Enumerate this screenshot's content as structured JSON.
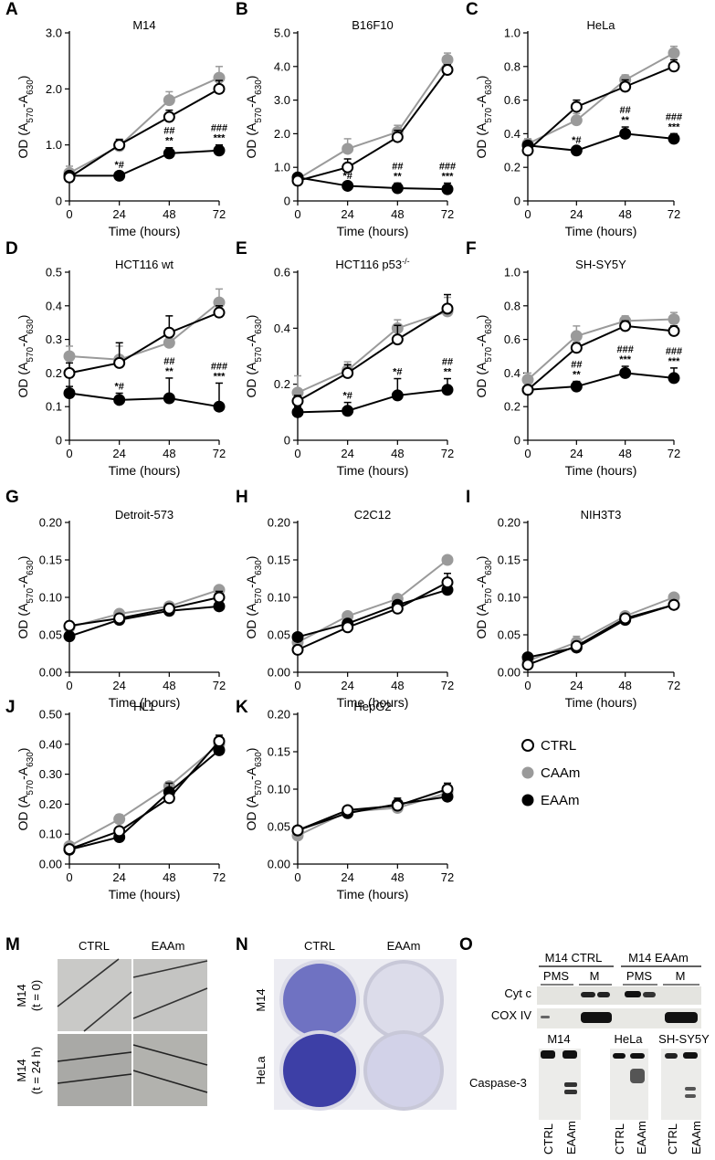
{
  "figure": {
    "legend": [
      {
        "label": "CTRL",
        "color": "#ffffff"
      },
      {
        "label": "CAAm",
        "color": "#9a9a9a"
      },
      {
        "label": "EAAm",
        "color": "#000000"
      }
    ],
    "colors": {
      "ctrl_fill": "#ffffff",
      "caam": "#9a9a9a",
      "eaam": "#000000"
    },
    "x_ticks": [
      0,
      24,
      48,
      72
    ],
    "xlabel": "Time (hours)",
    "ylabel_main": "OD (A",
    "ylabel_sub1": "570",
    "ylabel_mid": "-A",
    "ylabel_sub2": "630",
    "ylabel_end": ")",
    "panels": [
      {
        "letter": "A",
        "title": "M14",
        "ylim": [
          0,
          3.0
        ],
        "yticks": [
          "0",
          "1.0",
          "2.0",
          "3.0"
        ],
        "ctrl": [
          0.42,
          1.0,
          1.5,
          2.0
        ],
        "caam": [
          0.5,
          0.98,
          1.8,
          2.2
        ],
        "eaam": [
          0.45,
          0.45,
          0.85,
          0.9
        ],
        "ctrl_err": [
          0.06,
          0.1,
          0.12,
          0.15
        ],
        "caam_err": [
          0.12,
          0.1,
          0.15,
          0.2
        ],
        "eaam_err": [
          0.05,
          0.07,
          0.1,
          0.1
        ],
        "sig": [
          null,
          [
            "*#"
          ],
          [
            "##",
            "**"
          ],
          [
            "###",
            "***"
          ]
        ]
      },
      {
        "letter": "B",
        "title": "B16F10",
        "ylim": [
          0,
          5.0
        ],
        "yticks": [
          "0",
          "1.0",
          "2.0",
          "3.0",
          "4.0",
          "5.0"
        ],
        "ctrl": [
          0.6,
          1.0,
          1.9,
          3.9
        ],
        "caam": [
          0.65,
          1.55,
          2.05,
          4.2
        ],
        "eaam": [
          0.7,
          0.45,
          0.38,
          0.35
        ],
        "ctrl_err": [
          0.1,
          0.25,
          0.2,
          0.15
        ],
        "caam_err": [
          0.1,
          0.3,
          0.2,
          0.2
        ],
        "eaam_err": [
          0.08,
          0.1,
          0.15,
          0.18
        ],
        "sig": [
          null,
          [
            "*#"
          ],
          [
            "##",
            "**"
          ],
          [
            "###",
            "***"
          ]
        ]
      },
      {
        "letter": "C",
        "title": "HeLa",
        "ylim": [
          0,
          1.0
        ],
        "yticks": [
          "0",
          "0.2",
          "0.4",
          "0.6",
          "0.8",
          "1.0"
        ],
        "ctrl": [
          0.3,
          0.56,
          0.68,
          0.8
        ],
        "caam": [
          0.34,
          0.48,
          0.72,
          0.88
        ],
        "eaam": [
          0.33,
          0.3,
          0.4,
          0.37
        ],
        "ctrl_err": [
          0.02,
          0.04,
          0.04,
          0.04
        ],
        "caam_err": [
          0.03,
          0.04,
          0.03,
          0.04
        ],
        "eaam_err": [
          0.02,
          0.02,
          0.04,
          0.03
        ],
        "sig": [
          null,
          [
            "*#"
          ],
          [
            "##",
            "**"
          ],
          [
            "###",
            "***"
          ]
        ]
      },
      {
        "letter": "D",
        "title": "HCT116 wt",
        "ylim": [
          0,
          0.5
        ],
        "yticks": [
          "0",
          "0.1",
          "0.2",
          "0.3",
          "0.4",
          "0.5"
        ],
        "ctrl": [
          0.2,
          0.23,
          0.32,
          0.38
        ],
        "caam": [
          0.25,
          0.24,
          0.29,
          0.41
        ],
        "eaam": [
          0.14,
          0.12,
          0.125,
          0.1
        ],
        "ctrl_err": [
          0.03,
          0.06,
          0.05,
          0.02
        ],
        "caam_err": [
          0.03,
          0.04,
          0.04,
          0.04
        ],
        "eaam_err": [
          0.02,
          0.02,
          0.06,
          0.07
        ],
        "sig": [
          null,
          [
            "*#"
          ],
          [
            "##",
            "**"
          ],
          [
            "###",
            "***"
          ]
        ]
      },
      {
        "letter": "E",
        "title": "HCT116 p53",
        "title_sup": "-/-",
        "ylim": [
          0,
          0.6
        ],
        "yticks": [
          "0",
          "0.2",
          "0.4",
          "0.6"
        ],
        "ctrl": [
          0.14,
          0.24,
          0.36,
          0.47
        ],
        "caam": [
          0.17,
          0.25,
          0.4,
          0.46
        ],
        "eaam": [
          0.1,
          0.105,
          0.16,
          0.18
        ],
        "ctrl_err": [
          0.02,
          0.03,
          0.05,
          0.05
        ],
        "caam_err": [
          0.06,
          0.03,
          0.03,
          0.05
        ],
        "eaam_err": [
          0.02,
          0.03,
          0.06,
          0.04
        ],
        "sig": [
          null,
          [
            "*#"
          ],
          [
            "*#"
          ],
          [
            "##",
            "**"
          ]
        ]
      },
      {
        "letter": "F",
        "title": "SH-SY5Y",
        "ylim": [
          0,
          1.0
        ],
        "yticks": [
          "0",
          "0.2",
          "0.4",
          "0.6",
          "0.8",
          "1.0"
        ],
        "ctrl": [
          0.3,
          0.55,
          0.68,
          0.65
        ],
        "caam": [
          0.36,
          0.62,
          0.71,
          0.72
        ],
        "eaam": [
          0.3,
          0.32,
          0.4,
          0.37
        ],
        "ctrl_err": [
          0.02,
          0.03,
          0.03,
          0.03
        ],
        "caam_err": [
          0.04,
          0.06,
          0.03,
          0.04
        ],
        "eaam_err": [
          0.02,
          0.03,
          0.04,
          0.06
        ],
        "sig": [
          null,
          [
            "##",
            "**"
          ],
          [
            "###",
            "***"
          ],
          [
            "###",
            "***"
          ]
        ]
      },
      {
        "letter": "G",
        "title": "Detroit-573",
        "ylim": [
          0,
          0.2
        ],
        "yticks": [
          "0.00",
          "0.05",
          "0.10",
          "0.15",
          "0.20"
        ],
        "ctrl": [
          0.062,
          0.072,
          0.085,
          0.1
        ],
        "caam": [
          0.06,
          0.078,
          0.088,
          0.11
        ],
        "eaam": [
          0.048,
          0.07,
          0.082,
          0.088
        ],
        "ctrl_err": [
          0.003,
          0.004,
          0.006,
          0.008
        ],
        "caam_err": [
          0.003,
          0.003,
          0.005,
          0.005
        ],
        "eaam_err": [
          0.003,
          0.003,
          0.004,
          0.004
        ],
        "sig": [
          null,
          null,
          null,
          null
        ]
      },
      {
        "letter": "H",
        "title": "C2C12",
        "ylim": [
          0,
          0.2
        ],
        "yticks": [
          "0.00",
          "0.05",
          "0.10",
          "0.15",
          "0.20"
        ],
        "ctrl": [
          0.03,
          0.06,
          0.085,
          0.12
        ],
        "caam": [
          0.04,
          0.075,
          0.098,
          0.15
        ],
        "eaam": [
          0.047,
          0.065,
          0.09,
          0.11
        ],
        "ctrl_err": [
          0.004,
          0.004,
          0.005,
          0.012
        ],
        "caam_err": [
          0.003,
          0.003,
          0.004,
          0.004
        ],
        "eaam_err": [
          0.003,
          0.003,
          0.004,
          0.006
        ],
        "sig": [
          null,
          null,
          null,
          null
        ]
      },
      {
        "letter": "I",
        "title": "NIH3T3",
        "ylim": [
          0,
          0.2
        ],
        "yticks": [
          "0.00",
          "0.05",
          "0.10",
          "0.15",
          "0.20"
        ],
        "ctrl": [
          0.01,
          0.035,
          0.072,
          0.09
        ],
        "caam": [
          0.015,
          0.04,
          0.075,
          0.1
        ],
        "eaam": [
          0.02,
          0.033,
          0.07,
          0.09
        ],
        "ctrl_err": [
          0.004,
          0.005,
          0.004,
          0.004
        ],
        "caam_err": [
          0.003,
          0.008,
          0.005,
          0.005
        ],
        "eaam_err": [
          0.003,
          0.004,
          0.005,
          0.004
        ],
        "sig": [
          null,
          null,
          null,
          null
        ]
      },
      {
        "letter": "J",
        "title": "HL1",
        "ylim": [
          0,
          0.5
        ],
        "yticks": [
          "0.00",
          "0.10",
          "0.20",
          "0.30",
          "0.40",
          "0.50"
        ],
        "ctrl": [
          0.05,
          0.11,
          0.22,
          0.41
        ],
        "caam": [
          0.06,
          0.15,
          0.26,
          0.4
        ],
        "eaam": [
          0.048,
          0.09,
          0.24,
          0.38
        ],
        "ctrl_err": [
          0.008,
          0.01,
          0.015,
          0.02
        ],
        "caam_err": [
          0.008,
          0.015,
          0.015,
          0.015
        ],
        "eaam_err": [
          0.008,
          0.01,
          0.03,
          0.015
        ],
        "sig": [
          null,
          null,
          null,
          null
        ]
      },
      {
        "letter": "K",
        "title": "HepG2",
        "ylim": [
          0,
          0.2
        ],
        "yticks": [
          "0.00",
          "0.05",
          "0.10",
          "0.15",
          "0.20"
        ],
        "ctrl": [
          0.045,
          0.072,
          0.078,
          0.1
        ],
        "caam": [
          0.038,
          0.07,
          0.075,
          0.095
        ],
        "eaam": [
          0.045,
          0.068,
          0.08,
          0.09
        ],
        "ctrl_err": [
          0.003,
          0.003,
          0.004,
          0.008
        ],
        "caam_err": [
          0.003,
          0.003,
          0.003,
          0.004
        ],
        "eaam_err": [
          0.003,
          0.003,
          0.008,
          0.004
        ],
        "sig": [
          null,
          null,
          null,
          null
        ]
      }
    ],
    "bottom": {
      "m": {
        "letter": "M",
        "cols": [
          "CTRL",
          "EAAm"
        ],
        "row1_a": "M14",
        "row1_b": "(t = 0)",
        "row2_a": "M14",
        "row2_b": "(t = 24 h)"
      },
      "n": {
        "letter": "N",
        "cols": [
          "CTRL",
          "EAAm"
        ],
        "rows": [
          "M14",
          "HeLa"
        ]
      },
      "o": {
        "letter": "O",
        "grp1": "M14 CTRL",
        "grp2": "M14 EAAm",
        "sub": [
          "PMS",
          "M",
          "PMS",
          "M"
        ],
        "rows": [
          "Cyt c",
          "COX IV"
        ],
        "cells": [
          "M14",
          "HeLa",
          "SH-SY5Y"
        ],
        "casp": "Caspase-3",
        "lanes": [
          "CTRL",
          "EAAm"
        ]
      }
    }
  }
}
